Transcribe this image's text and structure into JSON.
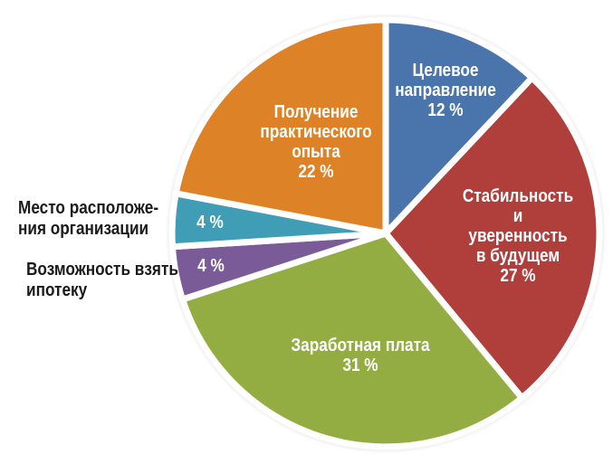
{
  "chart_data": {
    "type": "pie",
    "title": "",
    "categories": [
      "Целевое направление",
      "Стабильность и уверенность в будущем",
      "Заработная плата",
      "Возможность взять ипотеку",
      "Место расположения организации",
      "Получение практического опыта"
    ],
    "values": [
      12,
      27,
      31,
      4,
      4,
      22
    ],
    "unit": "%",
    "colors": [
      "#4A74AC",
      "#B03E3A",
      "#94AD43",
      "#7A5B97",
      "#3F9DB5",
      "#DE8227"
    ],
    "start_angle_deg": -90,
    "direction": "clockwise",
    "legend": "none",
    "labels_inside": true,
    "gap_color": "#ffffff",
    "halo_color": "#e4e4e4"
  },
  "labels": {
    "inside": [
      "Целевое\nнаправление\n12 %",
      "Стабильность\nи уверенность\nв будущем\n27 %",
      "Заработная плата\n31 %",
      "4 %",
      "4 %",
      "Получение\nпрактического\nопыта\n22 %"
    ],
    "outside": [
      "Место расположе-\nния организации",
      "Возможность взять\nипотеку"
    ]
  }
}
